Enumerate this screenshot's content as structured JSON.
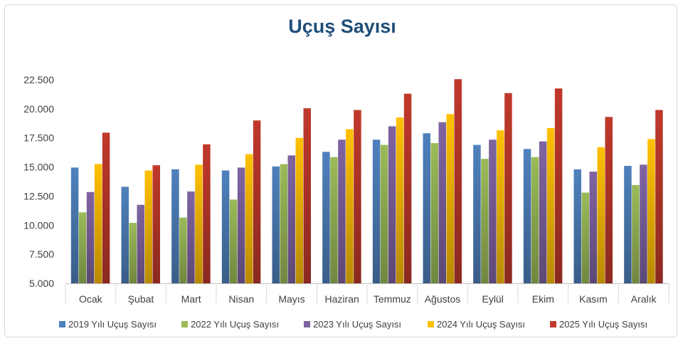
{
  "chart_data": {
    "type": "bar",
    "title": "Uçuş Sayısı",
    "xlabel": "",
    "ylabel": "",
    "ylim": [
      5000,
      22500
    ],
    "yticks": [
      "5.000",
      "7.500",
      "10.000",
      "12.500",
      "15.000",
      "17.500",
      "20.000",
      "22.500"
    ],
    "grid": false,
    "legend_position": "bottom",
    "categories": [
      "Ocak",
      "Şubat",
      "Mart",
      "Nisan",
      "Mayıs",
      "Haziran",
      "Temmuz",
      "Ağustos",
      "Eylül",
      "Ekim",
      "Kasım",
      "Aralık"
    ],
    "series": [
      {
        "name": "2019 Yılı Uçuş Sayısı",
        "color": "#4f81bd",
        "values": [
          14950,
          13300,
          14800,
          14700,
          15050,
          16300,
          17350,
          17900,
          16900,
          16550,
          14800,
          15100
        ]
      },
      {
        "name": "2022 Yılı Uçuş Sayısı",
        "color": "#9bbb59",
        "values": [
          11100,
          10200,
          10650,
          12200,
          15250,
          15850,
          16900,
          17050,
          15700,
          15850,
          12800,
          13450
        ]
      },
      {
        "name": "2023 Yılı Uçuş Sayısı",
        "color": "#8064a2",
        "values": [
          12850,
          11750,
          12900,
          14950,
          16000,
          17350,
          18500,
          18850,
          17350,
          17200,
          14600,
          15200
        ]
      },
      {
        "name": "2024 Yılı Uçuş Sayısı",
        "color": "#ffc000",
        "values": [
          15250,
          14700,
          15200,
          16100,
          17500,
          18250,
          19250,
          19550,
          18150,
          18350,
          16700,
          17400
        ]
      },
      {
        "name": "2025 Yılı Uçuş Sayısı",
        "color": "#c0392b",
        "values": [
          17950,
          15150,
          16950,
          19000,
          20050,
          19900,
          21300,
          22550,
          21350,
          21750,
          19300,
          19900
        ]
      }
    ]
  }
}
